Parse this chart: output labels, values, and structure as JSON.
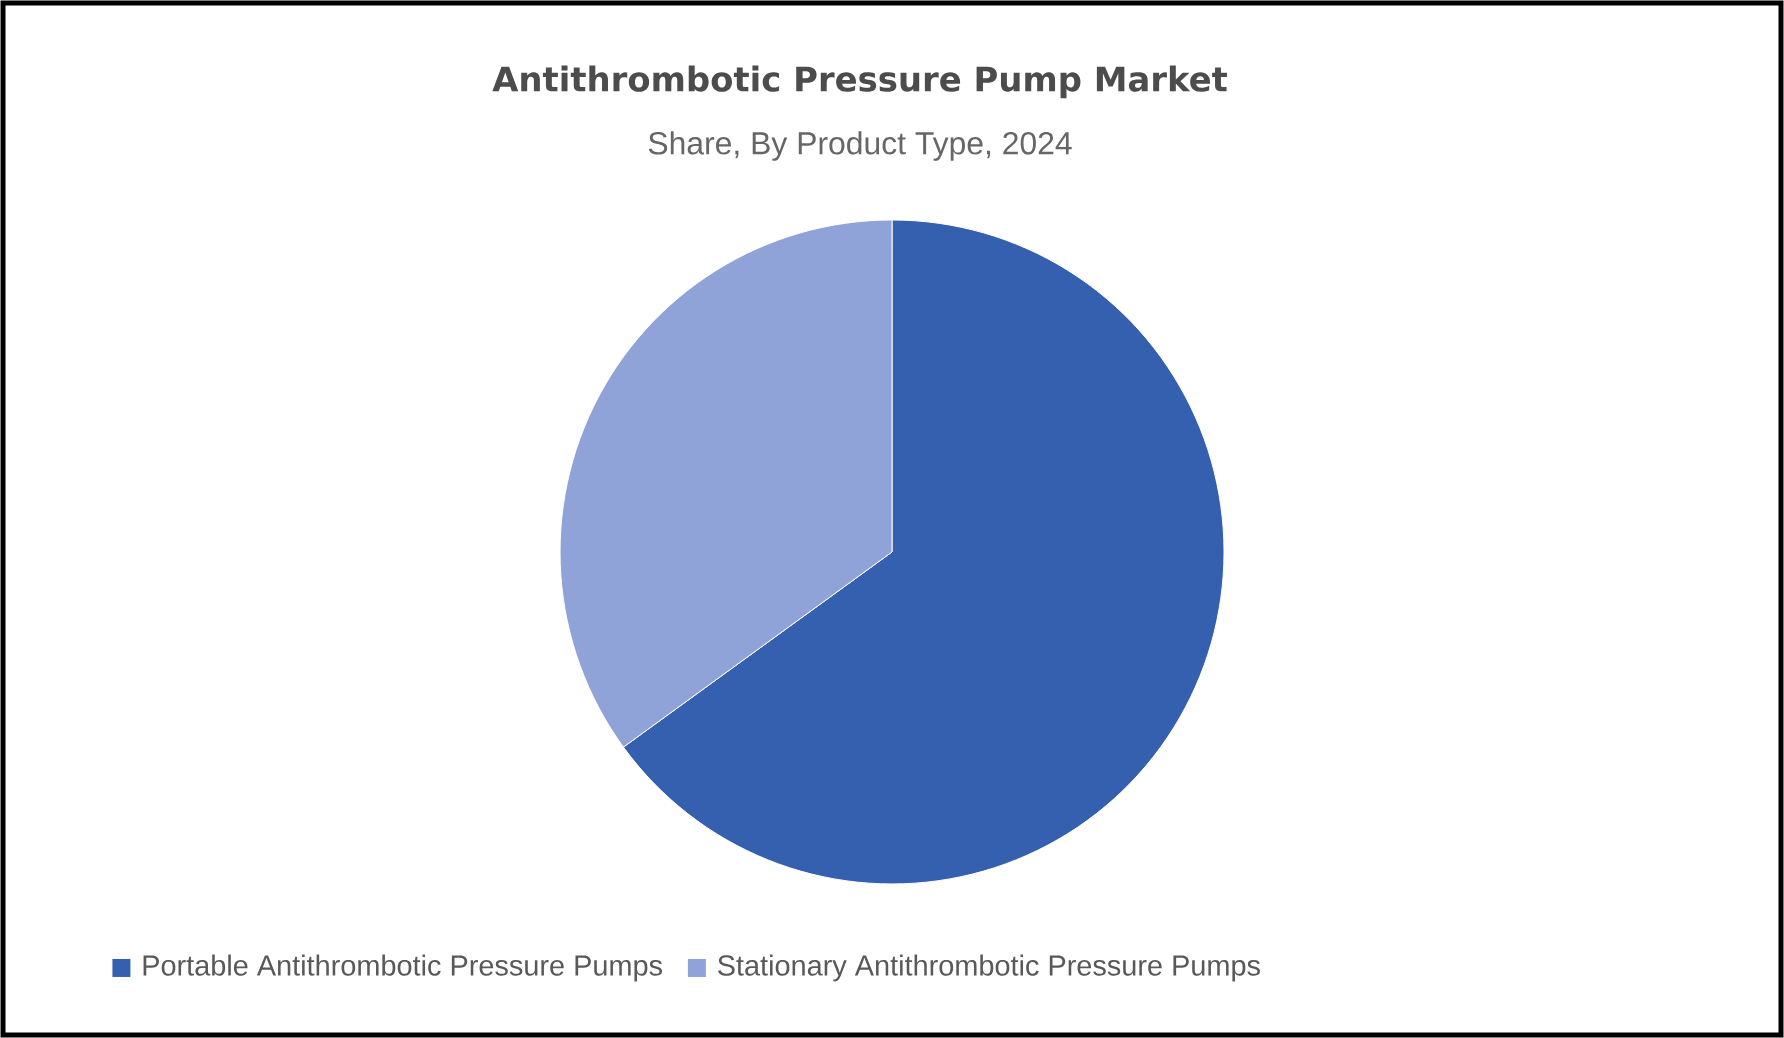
{
  "chart_data": {
    "type": "pie",
    "title": "Antithrombotic Pressure Pump Market",
    "subtitle": "Share, By Product Type, 2024",
    "categories": [
      "Portable Antithrombotic Pressure Pumps",
      "Stationary Antithrombotic Pressure Pumps"
    ],
    "values": [
      65,
      35
    ],
    "colors": [
      "#3560b0",
      "#8fa3d8"
    ],
    "legend": "bottom"
  }
}
